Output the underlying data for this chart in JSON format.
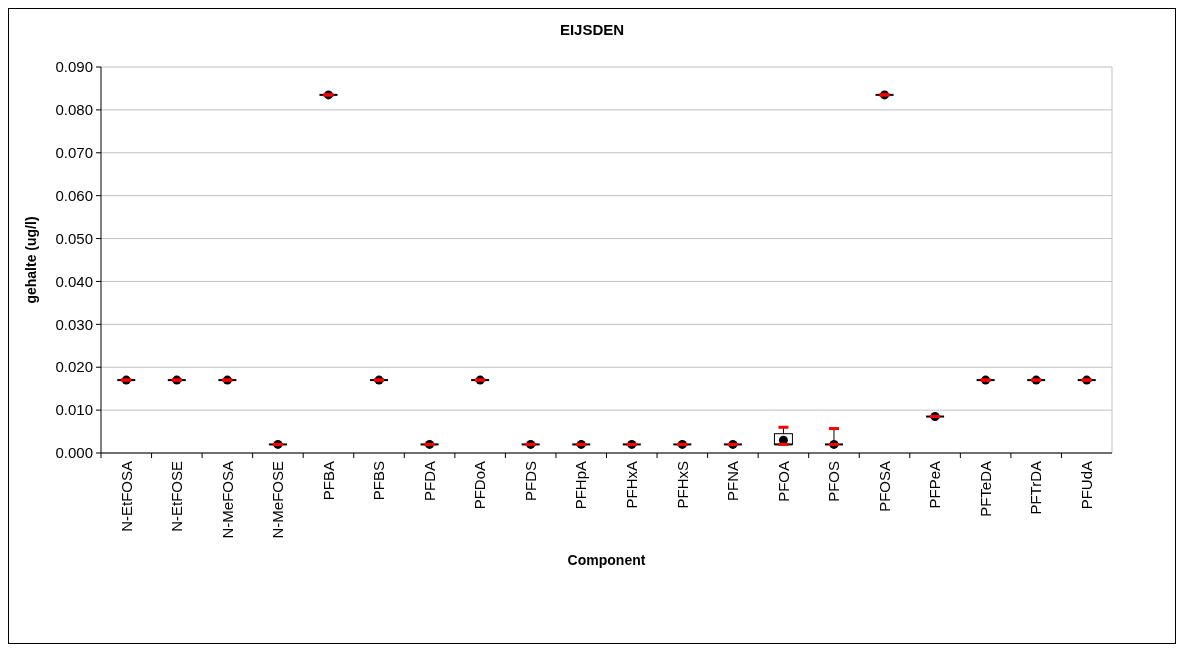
{
  "chart_data": {
    "type": "box",
    "title": "EIJSDEN",
    "xlabel": "Component",
    "ylabel": "gehalte (ug/l)",
    "categories": [
      "N-EtFOSA",
      "N-EtFOSE",
      "N-MeFOSA",
      "N-MeFOSE",
      "PFBA",
      "PFBS",
      "PFDA",
      "PFDoA",
      "PFDS",
      "PFHpA",
      "PFHxA",
      "PFHxS",
      "PFNA",
      "PFOA",
      "PFOS",
      "PFOSA",
      "PFPeA",
      "PFTeDA",
      "PFTrDA",
      "PFUdA"
    ],
    "boxes": [
      {
        "low": 0.017,
        "q1": 0.017,
        "median": 0.017,
        "q3": 0.017,
        "high": 0.017,
        "mean": 0.017
      },
      {
        "low": 0.017,
        "q1": 0.017,
        "median": 0.017,
        "q3": 0.017,
        "high": 0.017,
        "mean": 0.017
      },
      {
        "low": 0.017,
        "q1": 0.017,
        "median": 0.017,
        "q3": 0.017,
        "high": 0.017,
        "mean": 0.017
      },
      {
        "low": 0.002,
        "q1": 0.002,
        "median": 0.002,
        "q3": 0.002,
        "high": 0.002,
        "mean": 0.002
      },
      {
        "low": 0.0835,
        "q1": 0.0835,
        "median": 0.0835,
        "q3": 0.0835,
        "high": 0.0835,
        "mean": 0.0835
      },
      {
        "low": 0.017,
        "q1": 0.017,
        "median": 0.017,
        "q3": 0.017,
        "high": 0.017,
        "mean": 0.017
      },
      {
        "low": 0.002,
        "q1": 0.002,
        "median": 0.002,
        "q3": 0.002,
        "high": 0.002,
        "mean": 0.002
      },
      {
        "low": 0.017,
        "q1": 0.017,
        "median": 0.017,
        "q3": 0.017,
        "high": 0.017,
        "mean": 0.017
      },
      {
        "low": 0.002,
        "q1": 0.002,
        "median": 0.002,
        "q3": 0.002,
        "high": 0.002,
        "mean": 0.002
      },
      {
        "low": 0.002,
        "q1": 0.002,
        "median": 0.002,
        "q3": 0.002,
        "high": 0.002,
        "mean": 0.002
      },
      {
        "low": 0.002,
        "q1": 0.002,
        "median": 0.002,
        "q3": 0.002,
        "high": 0.002,
        "mean": 0.002
      },
      {
        "low": 0.002,
        "q1": 0.002,
        "median": 0.002,
        "q3": 0.002,
        "high": 0.002,
        "mean": 0.002
      },
      {
        "low": 0.002,
        "q1": 0.002,
        "median": 0.002,
        "q3": 0.002,
        "high": 0.002,
        "mean": 0.002
      },
      {
        "low": 0.002,
        "q1": 0.002,
        "median": 0.002,
        "q3": 0.0045,
        "high": 0.006,
        "mean": 0.003
      },
      {
        "low": 0.002,
        "q1": 0.002,
        "median": 0.002,
        "q3": 0.002,
        "high": 0.0057,
        "mean": 0.002
      },
      {
        "low": 0.0835,
        "q1": 0.0835,
        "median": 0.0835,
        "q3": 0.0835,
        "high": 0.0835,
        "mean": 0.0835
      },
      {
        "low": 0.0085,
        "q1": 0.0085,
        "median": 0.0085,
        "q3": 0.0085,
        "high": 0.0085,
        "mean": 0.0085
      },
      {
        "low": 0.017,
        "q1": 0.017,
        "median": 0.017,
        "q3": 0.017,
        "high": 0.017,
        "mean": 0.017
      },
      {
        "low": 0.017,
        "q1": 0.017,
        "median": 0.017,
        "q3": 0.017,
        "high": 0.017,
        "mean": 0.017
      },
      {
        "low": 0.017,
        "q1": 0.017,
        "median": 0.017,
        "q3": 0.017,
        "high": 0.017,
        "mean": 0.017
      }
    ],
    "ylim": [
      0,
      0.09
    ],
    "yticks": [
      {
        "value": 0,
        "label": "0.000"
      },
      {
        "value": 0.01,
        "label": "0.010"
      },
      {
        "value": 0.02,
        "label": "0.020"
      },
      {
        "value": 0.03,
        "label": "0.030"
      },
      {
        "value": 0.04,
        "label": "0.040"
      },
      {
        "value": 0.05,
        "label": "0.050"
      },
      {
        "value": 0.06,
        "label": "0.060"
      },
      {
        "value": 0.07,
        "label": "0.070"
      },
      {
        "value": 0.08,
        "label": "0.080"
      },
      {
        "value": 0.09,
        "label": "0.090"
      }
    ],
    "grid": "y"
  }
}
